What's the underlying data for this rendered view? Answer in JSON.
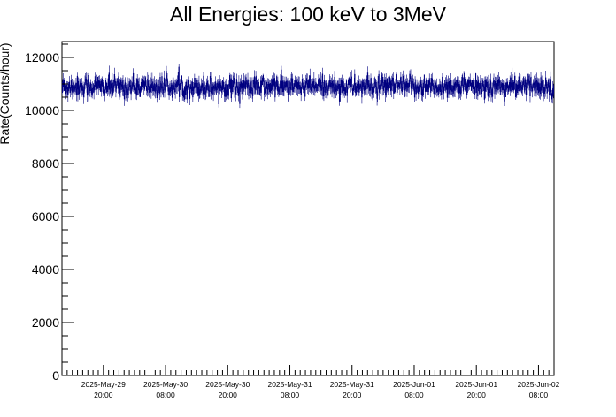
{
  "chart_data": {
    "type": "line",
    "title": "All Energies:  100 keV to 3MeV",
    "xlabel": "",
    "ylabel": "Rate(Counts/hour)",
    "ylim": [
      0,
      12600
    ],
    "yticks": [
      0,
      2000,
      4000,
      6000,
      8000,
      10000,
      12000
    ],
    "xlim_hours": [
      0,
      95
    ],
    "xticks": [
      {
        "hour": 8,
        "date": "2025-May-29",
        "time": "20:00"
      },
      {
        "hour": 20,
        "date": "2025-May-30",
        "time": "08:00"
      },
      {
        "hour": 32,
        "date": "2025-May-30",
        "time": "20:00"
      },
      {
        "hour": 44,
        "date": "2025-May-31",
        "time": "08:00"
      },
      {
        "hour": 56,
        "date": "2025-May-31",
        "time": "20:00"
      },
      {
        "hour": 68,
        "date": "2025-Jun-01",
        "time": "08:00"
      },
      {
        "hour": 80,
        "date": "2025-Jun-01",
        "time": "20:00"
      },
      {
        "hour": 92,
        "date": "2025-Jun-02",
        "time": "08:00"
      }
    ],
    "series": [
      {
        "color": "#000080",
        "mean": 10900,
        "spread": 350,
        "min": 10000,
        "max": 11900
      }
    ],
    "grid": false,
    "legend": "none"
  }
}
